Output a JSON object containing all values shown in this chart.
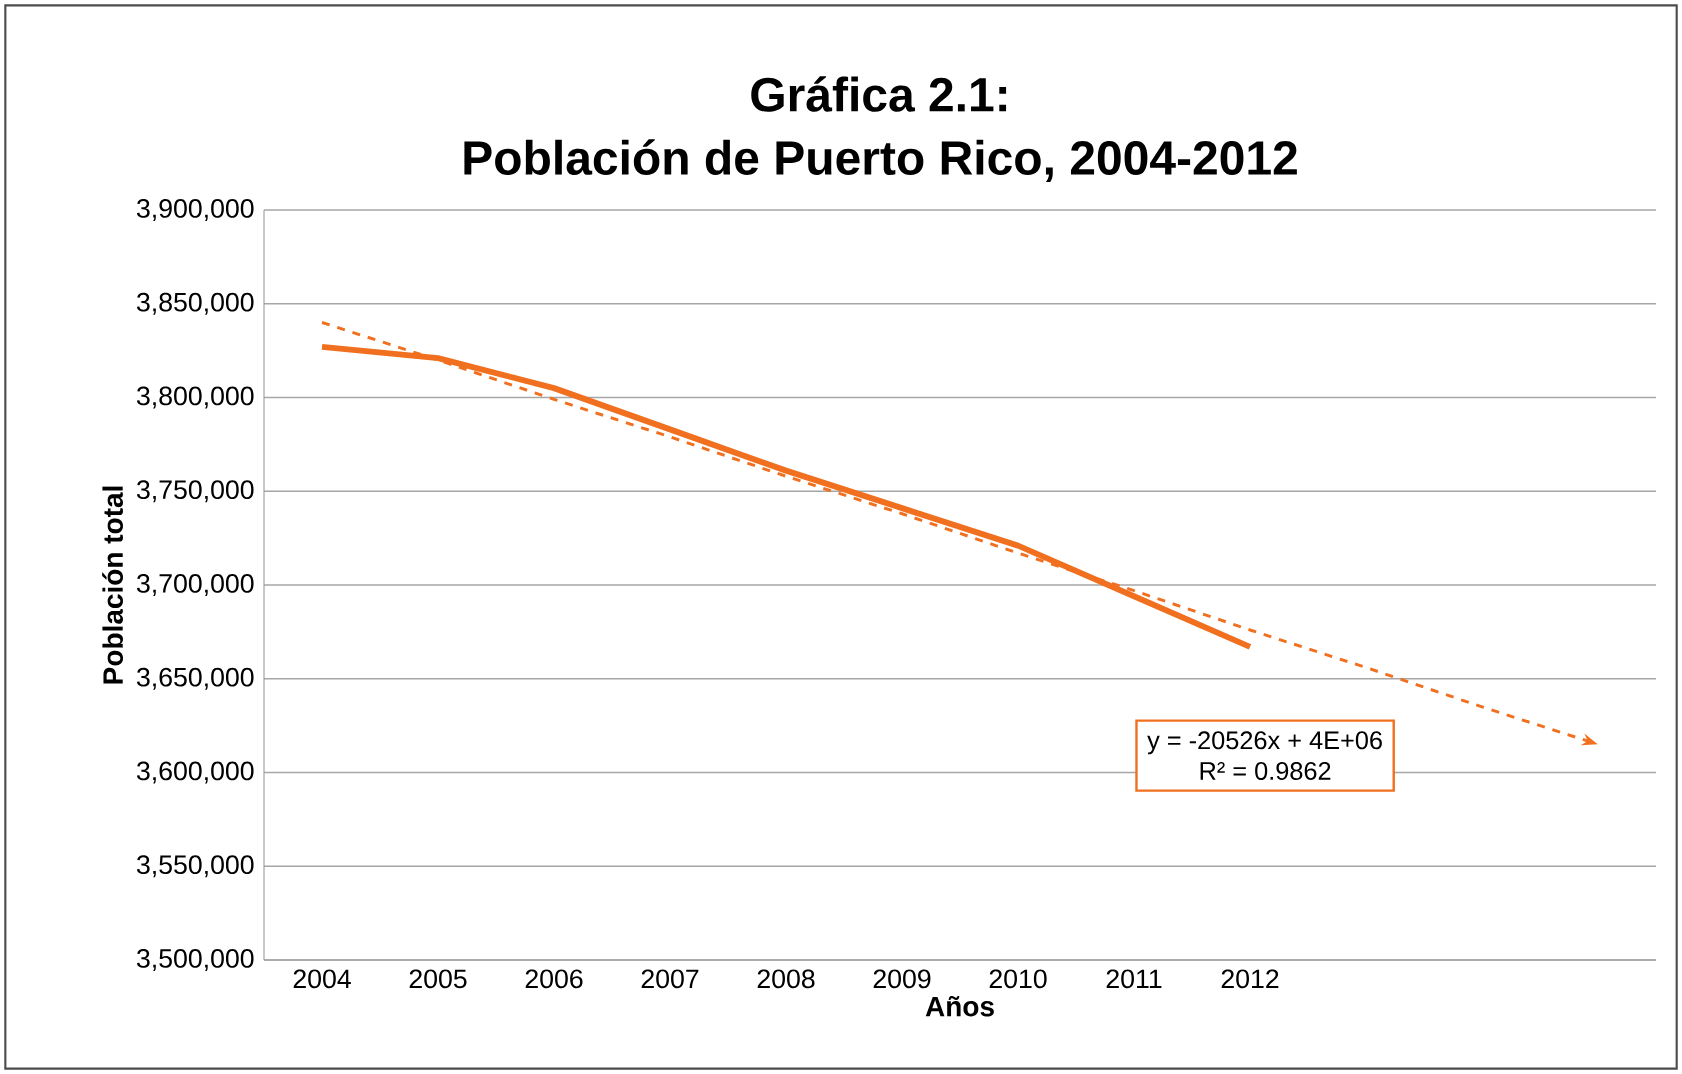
{
  "chart_data": {
    "type": "line",
    "title": "Gráfica 2.1:",
    "subtitle": "Población de Puerto Rico, 2004-2012",
    "xlabel": "Años",
    "ylabel": "Población total",
    "categories": [
      "2004",
      "2005",
      "2006",
      "2007",
      "2008",
      "2009",
      "2010",
      "2011",
      "2012",
      null,
      null,
      null
    ],
    "series": [
      {
        "color": "#f07020",
        "line_style": "solid",
        "values": [
          3827000,
          3821000,
          3805000,
          3783000,
          3761000,
          3741000,
          3721000,
          3694000,
          3667000,
          null,
          null,
          null
        ]
      },
      {
        "color": "#f07020",
        "line_style": "dashed",
        "values": [
          3840000,
          3820000,
          3799000,
          3779000,
          3758000,
          3738000,
          3717000,
          3697000,
          3676000,
          3656000,
          3635000,
          3615000
        ]
      }
    ],
    "ylim": [
      3500000,
      3900000
    ],
    "yticks": [
      {
        "value": 3500000,
        "label": "3,500,000"
      },
      {
        "value": 3550000,
        "label": "3,550,000"
      },
      {
        "value": 3600000,
        "label": "3,600,000"
      },
      {
        "value": 3650000,
        "label": "3,650,000"
      },
      {
        "value": 3700000,
        "label": "3,700,000"
      },
      {
        "value": 3750000,
        "label": "3,750,000"
      },
      {
        "value": 3800000,
        "label": "3,800,000"
      },
      {
        "value": 3850000,
        "label": "3,850,000"
      },
      {
        "value": 3900000,
        "label": "3,900,000"
      }
    ],
    "grid": "y",
    "annotations": [
      "y = -20526x + 4E+06",
      "R² = 0.9862"
    ]
  }
}
